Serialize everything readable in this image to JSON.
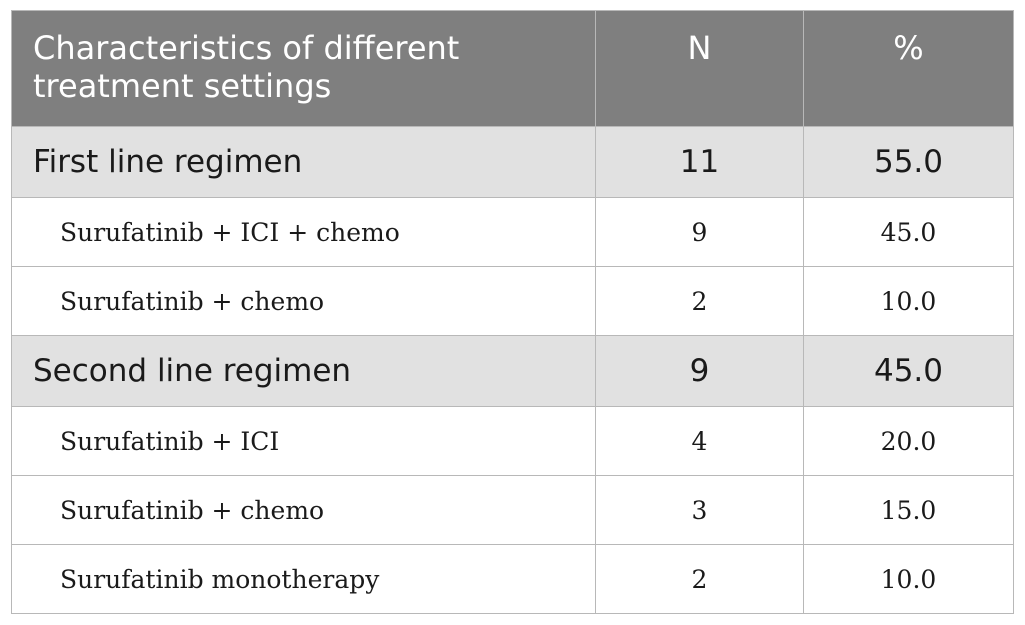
{
  "table": {
    "header": {
      "characteristic_line1": "Characteristics of different",
      "characteristic_line2": "treatment settings",
      "n": "N",
      "percent": "%"
    },
    "sections": [
      {
        "label": "First line regimen",
        "n": "11",
        "percent": "55.0",
        "rows": [
          {
            "label": "Surufatinib + ICI + chemo",
            "n": "9",
            "percent": "45.0"
          },
          {
            "label": "Surufatinib + chemo",
            "n": "2",
            "percent": "10.0"
          }
        ]
      },
      {
        "label": "Second line regimen",
        "n": "9",
        "percent": "45.0",
        "rows": [
          {
            "label": "Surufatinib + ICI",
            "n": "4",
            "percent": "20.0"
          },
          {
            "label": "Surufatinib + chemo",
            "n": "3",
            "percent": "15.0"
          },
          {
            "label": "Surufatinib monotherapy",
            "n": "2",
            "percent": "10.0"
          }
        ]
      }
    ]
  }
}
